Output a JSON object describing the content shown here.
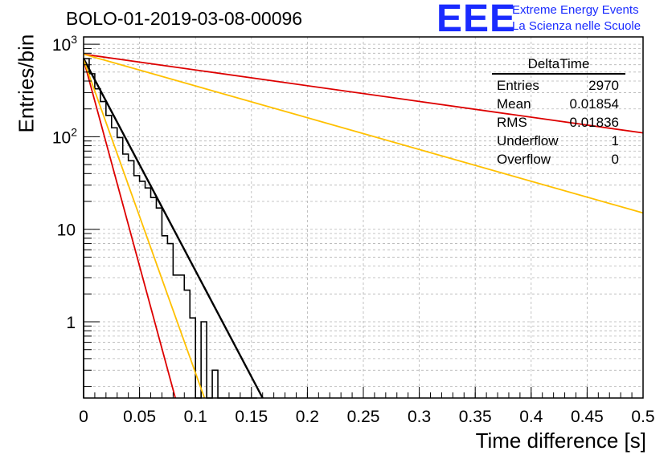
{
  "title": "BOLO-01-2019-03-08-00096",
  "logo": {
    "mark": "EEE",
    "line1": "Extreme Energy Events",
    "line2": "La Scienza nelle Scuole",
    "color": "#1a2bff"
  },
  "stats": {
    "title": "DeltaTime",
    "rows": [
      {
        "label": "Entries",
        "value": "2970"
      },
      {
        "label": "Mean",
        "value": "0.01854"
      },
      {
        "label": "RMS",
        "value": "0.01836"
      },
      {
        "label": "Underflow",
        "value": "1"
      },
      {
        "label": "Overflow",
        "value": "0"
      }
    ]
  },
  "chart_data": {
    "type": "line",
    "title": "BOLO-01-2019-03-08-00096",
    "xlabel": "Time difference [s]",
    "ylabel": "Entries/bin",
    "xlim": [
      0,
      0.5
    ],
    "ylim": [
      0.15,
      1200
    ],
    "yscale": "log",
    "grid": true,
    "xticks": [
      0,
      0.05,
      0.1,
      0.15,
      0.2,
      0.25,
      0.3,
      0.35,
      0.4,
      0.45,
      0.5
    ],
    "xtick_labels": [
      "0",
      "0.05",
      "0.1",
      "0.15",
      "0.2",
      "0.25",
      "0.3",
      "0.35",
      "0.4",
      "0.45",
      "0.5"
    ],
    "yticks": [
      1,
      10,
      100,
      1000
    ],
    "ytick_labels": [
      "1",
      "10",
      "10^2",
      "10^3"
    ],
    "histogram": {
      "bin_width": 0.005,
      "bin_start": 0,
      "counts": [
        700,
        480,
        330,
        240,
        170,
        125,
        98,
        65,
        55,
        38,
        33,
        28,
        22,
        17,
        8.5,
        7,
        3.2,
        3.2,
        2.2,
        1.1,
        0.15,
        1.0,
        0.15,
        0.3,
        0.15,
        0.15,
        0.15,
        0.15,
        0.15,
        0.15,
        0.15
      ]
    },
    "series": [
      {
        "color": "#000000",
        "x": [
          0,
          0.16
        ],
        "y": [
          700,
          0.15
        ],
        "style": "fit"
      },
      {
        "color": "#dd0000",
        "x": [
          0,
          0.5
        ],
        "y": [
          780,
          110
        ],
        "style": "line"
      },
      {
        "color": "#ffc000",
        "x": [
          0,
          0.5
        ],
        "y": [
          780,
          15
        ],
        "style": "line"
      },
      {
        "color": "#dd0000",
        "x": [
          0,
          0.082
        ],
        "y": [
          680,
          0.15
        ],
        "style": "line"
      },
      {
        "color": "#ffc000",
        "x": [
          0,
          0.108
        ],
        "y": [
          680,
          0.15
        ],
        "style": "line"
      }
    ]
  }
}
